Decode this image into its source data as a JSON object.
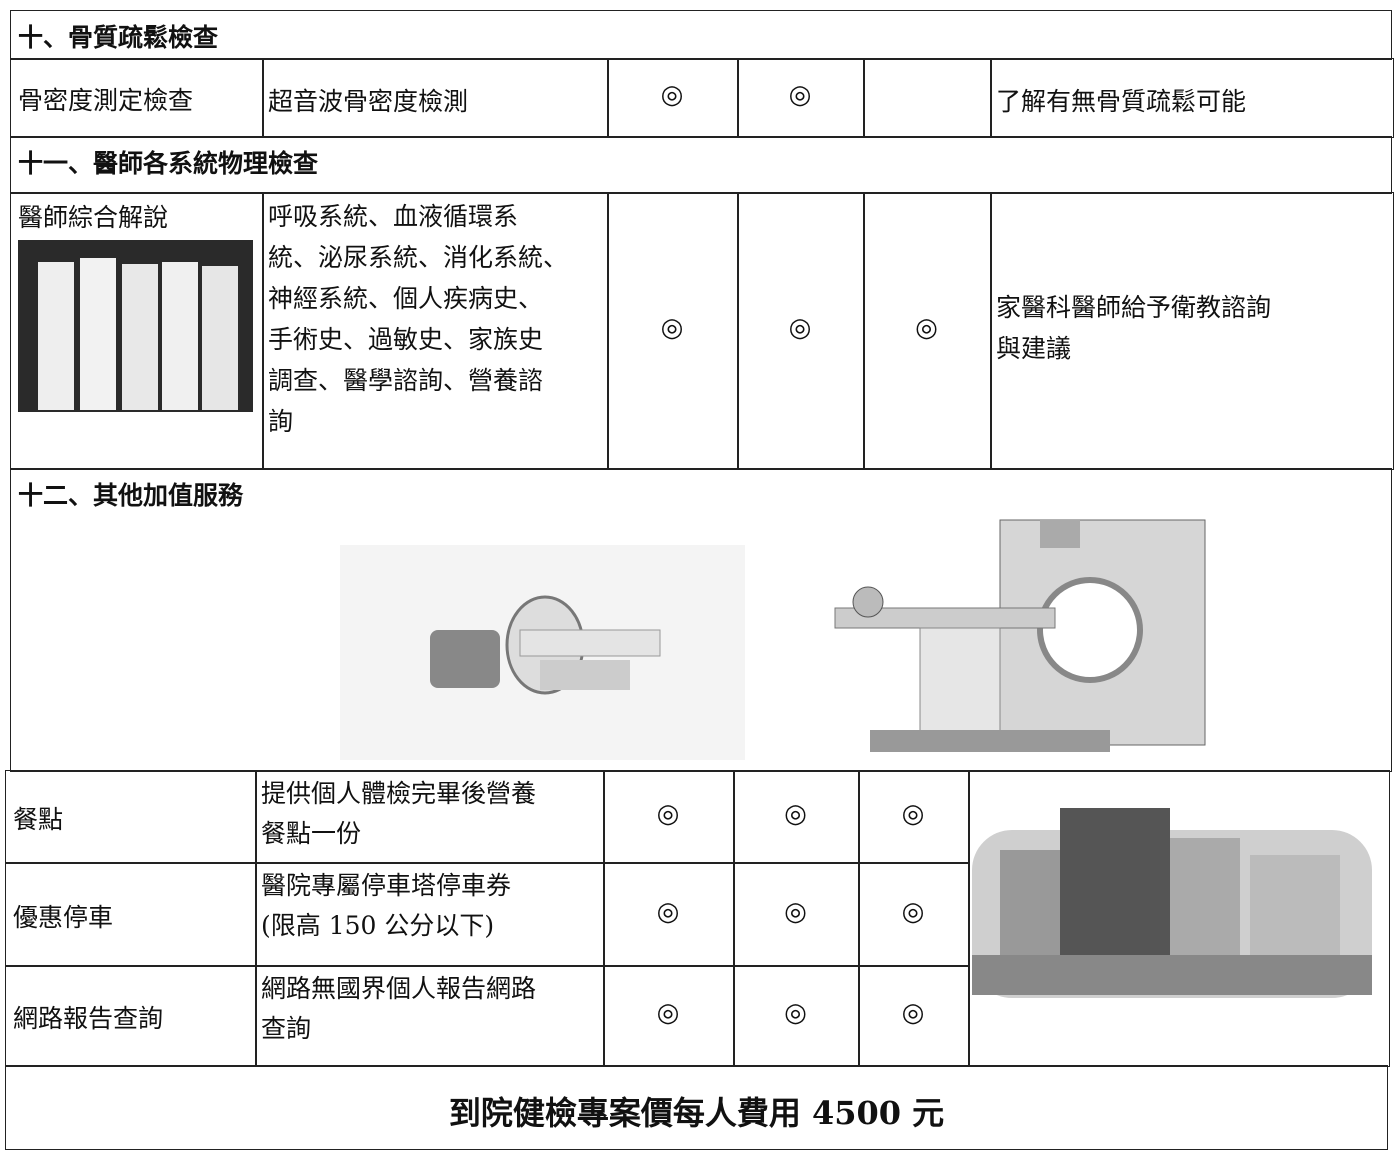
{
  "sections": [
    {
      "title": "十、骨質疏鬆檢查",
      "rows": [
        {
          "item": "骨密度測定檢查",
          "content": [
            "超音波骨密度檢測"
          ],
          "marks": [
            "◎",
            "◎",
            null
          ],
          "note": [
            "了解有無骨質疏鬆可能"
          ]
        }
      ]
    },
    {
      "title": "十一、醫師各系統物理檢查",
      "rows": [
        {
          "item": "醫師綜合解說",
          "content": [
            "呼吸系統、血液循環系",
            "統、泌尿系統、消化系統、",
            "神經系統、個人疾病史、",
            "手術史、過敏史、家族史",
            "調查、醫學諮詢、營養諮",
            "詢"
          ],
          "marks": [
            "◎",
            "◎",
            "◎"
          ],
          "note": [
            "家醫科醫師給予衛教諮詢",
            "與建議"
          ]
        }
      ]
    },
    {
      "title": "十二、其他加值服務",
      "rows": [
        {
          "item": "餐點",
          "content": [
            "提供個人體檢完畢後營養",
            "餐點一份"
          ],
          "marks": [
            "◎",
            "◎",
            "◎"
          ]
        },
        {
          "item": "優惠停車",
          "content": [
            "醫院專屬停車塔停車券",
            "(限高 150 公分以下)"
          ],
          "marks": [
            "◎",
            "◎",
            "◎"
          ]
        },
        {
          "item": "網路報告查詢",
          "content": [
            "網路無國界個人報告網路",
            "查詢"
          ],
          "marks": [
            "◎",
            "◎",
            "◎"
          ]
        }
      ]
    }
  ],
  "footer": "到院健檢專案價每人費用 4500 元"
}
